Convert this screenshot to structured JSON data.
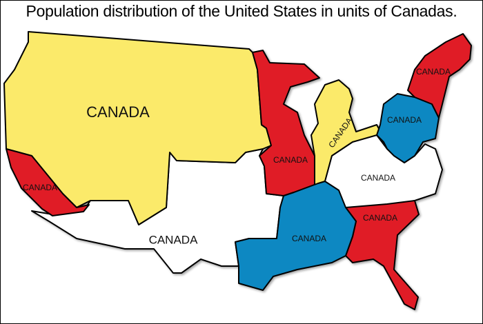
{
  "title": "Population distribution of the United States in units of Canadas.",
  "colors": {
    "yellow": "#fbea6a",
    "red": "#e01f26",
    "blue": "#0a88c2",
    "white": "#ffffff"
  },
  "regions": [
    {
      "id": "west",
      "label": "CANADA",
      "color": "#fbea6a"
    },
    {
      "id": "california",
      "label": "CANADA",
      "color": "#e01f26"
    },
    {
      "id": "upper-midwest",
      "label": "CANADA",
      "color": "#e01f26"
    },
    {
      "id": "great-lakes",
      "label": "CANADA",
      "color": "#fbea6a"
    },
    {
      "id": "new-york-pennsylvania",
      "label": "CANADA",
      "color": "#0a88c2"
    },
    {
      "id": "new-england",
      "label": "CANADA",
      "color": "#e01f26"
    },
    {
      "id": "mid-atlantic",
      "label": "CANADA",
      "color": "#ffffff"
    },
    {
      "id": "southeast",
      "label": "CANADA",
      "color": "#e01f26"
    },
    {
      "id": "south-central",
      "label": "CANADA",
      "color": "#0a88c2"
    },
    {
      "id": "southwest",
      "label": "CANADA",
      "color": "#ffffff"
    }
  ]
}
